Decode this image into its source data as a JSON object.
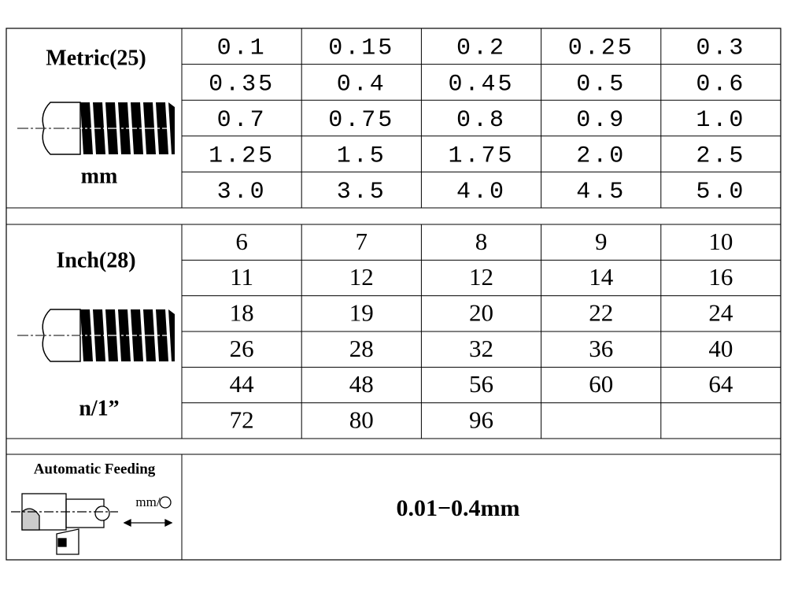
{
  "metric": {
    "label": "Metric(25)",
    "unit": "mm",
    "rows": [
      [
        "0.1",
        "0.15",
        "0.2",
        "0.25",
        "0.3"
      ],
      [
        "0.35",
        "0.4",
        "0.45",
        "0.5",
        "0.6"
      ],
      [
        "0.7",
        "0.75",
        "0.8",
        "0.9",
        "1.0"
      ],
      [
        "1.25",
        "1.5",
        "1.75",
        "2.0",
        "2.5"
      ],
      [
        "3.0",
        "3.5",
        "4.0",
        "4.5",
        "5.0"
      ]
    ]
  },
  "inch": {
    "label": "Inch(28)",
    "unit": "n/1”",
    "rows": [
      [
        "6",
        "7",
        "8",
        "9",
        "10"
      ],
      [
        "11",
        "12",
        "12",
        "14",
        "16"
      ],
      [
        "18",
        "19",
        "20",
        "22",
        "24"
      ],
      [
        "26",
        "28",
        "32",
        "36",
        "40"
      ],
      [
        "44",
        "48",
        "56",
        "60",
        "64"
      ],
      [
        "72",
        "80",
        "96"
      ]
    ]
  },
  "feeding": {
    "label": "Automatic Feeding",
    "icon_text": "mm/",
    "value": "0.01−0.4mm"
  }
}
